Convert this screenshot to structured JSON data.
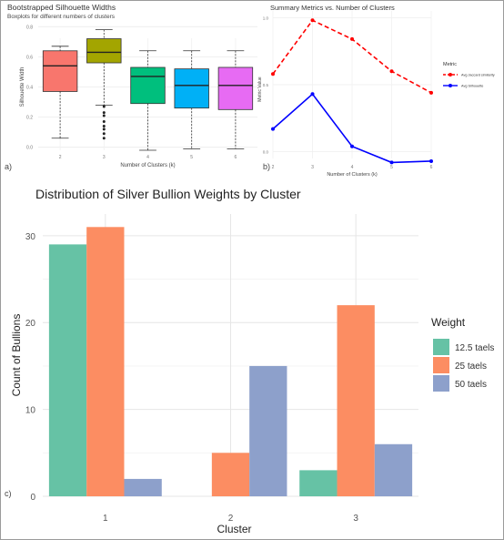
{
  "chart_data": [
    {
      "type": "box",
      "panel_label": "a)",
      "title": "Bootstrapped Silhouette Widths",
      "subtitle": "Boxplots for different numbers of clusters",
      "xlabel": "Number of Clusters (k)",
      "ylabel": "Silhouette Width",
      "yticks": [
        "0.0",
        "0.2",
        "0.4",
        "0.6",
        "0.8"
      ],
      "ylim": [
        -0.02,
        0.82
      ],
      "categories": [
        "2",
        "3",
        "4",
        "5",
        "6"
      ],
      "boxes": [
        {
          "k": "2",
          "whisker_low": 0.06,
          "q1": 0.37,
          "median": 0.54,
          "q3": 0.64,
          "whisker_high": 0.67,
          "color": "#f8766d"
        },
        {
          "k": "3",
          "whisker_low": 0.28,
          "q1": 0.56,
          "median": 0.63,
          "q3": 0.72,
          "whisker_high": 0.78,
          "color": "#a3a500",
          "outliers": [
            0.06,
            0.09,
            0.12,
            0.14,
            0.17,
            0.21,
            0.23,
            0.27
          ]
        },
        {
          "k": "4",
          "whisker_low": -0.02,
          "q1": 0.29,
          "median": 0.47,
          "q3": 0.53,
          "whisker_high": 0.64,
          "color": "#00bf7d"
        },
        {
          "k": "5",
          "whisker_low": -0.01,
          "q1": 0.26,
          "median": 0.41,
          "q3": 0.52,
          "whisker_high": 0.64,
          "color": "#00b0f6"
        },
        {
          "k": "6",
          "whisker_low": -0.01,
          "q1": 0.25,
          "median": 0.41,
          "q3": 0.53,
          "whisker_high": 0.64,
          "color": "#e76bf3"
        }
      ]
    },
    {
      "type": "line",
      "panel_label": "b)",
      "title": "Summary Metrics vs. Number of Clusters",
      "xlabel": "Number of Clusters (k)",
      "ylabel": "Metric Value",
      "x": [
        2,
        3,
        4,
        5,
        6
      ],
      "xticks": [
        "2",
        "3",
        "4",
        "5",
        "6"
      ],
      "yticks": [
        "0.0",
        "0.5",
        "1.0"
      ],
      "ylim": [
        -0.05,
        1.05
      ],
      "legend_title": "Metric",
      "series": [
        {
          "name": "Avg Jaccard similarity",
          "values": [
            0.58,
            0.98,
            0.84,
            0.6,
            0.44
          ],
          "color": "#ff0000",
          "dashed": true
        },
        {
          "name": "Avg Silhouette",
          "values": [
            0.17,
            0.43,
            0.04,
            -0.08,
            -0.07
          ],
          "color": "#0000ff",
          "dashed": false
        }
      ]
    },
    {
      "type": "bar",
      "panel_label": "c)",
      "title": "Distribution of Silver Bullion Weights by Cluster",
      "xlabel": "Cluster",
      "ylabel": "Count of Bullions",
      "categories": [
        "1",
        "2",
        "3"
      ],
      "yticks": [
        0,
        10,
        20,
        30
      ],
      "ylim": [
        0,
        32.5
      ],
      "legend_title": "Weight",
      "legend_position": "right",
      "series": [
        {
          "name": "12.5 taels",
          "values": [
            29,
            0,
            3
          ],
          "color": "#66c2a5"
        },
        {
          "name": "25 taels",
          "values": [
            31,
            5,
            22
          ],
          "color": "#fc8d62"
        },
        {
          "name": "50 taels",
          "values": [
            2,
            15,
            6
          ],
          "color": "#8da0cb"
        }
      ]
    }
  ]
}
